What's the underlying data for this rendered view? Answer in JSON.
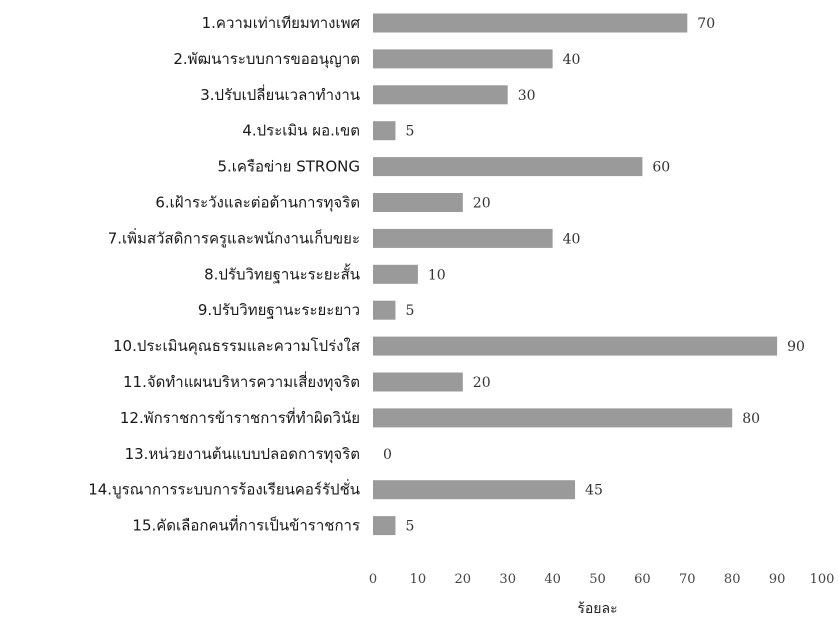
{
  "chart_data": {
    "type": "bar",
    "orientation": "horizontal",
    "categories": [
      "1.ความเท่าเทียมทางเพศ",
      "2.พัฒนาระบบการขออนุญาต",
      "3.ปรับเปลี่ยนเวลาทำงาน",
      "4.ประเมิน ผอ.เขต",
      "5.เครือข่าย STRONG",
      "6.เฝ้าระวังและต่อต้านการทุจริต",
      "7.เพิ่มสวัสดิการครูและพนักงานเก็บขยะ",
      "8.ปรับวิทยฐานะระยะสั้น",
      "9.ปรับวิทยฐานะระยะยาว",
      "10.ประเมินคุณธรรมและความโปร่งใส",
      "11.จัดทำแผนบริหารความเสี่ยงทุจริต",
      "12.พักราชการข้าราชการที่ทำผิดวินัย",
      "13.หน่วยงานต้นแบบปลอดการทุจริต",
      "14.บูรณาการระบบการร้องเรียนคอร์รัปชั่น",
      "15.คัดเลือกคนที่การเป็นข้าราชการ"
    ],
    "values": [
      70,
      40,
      30,
      5,
      60,
      20,
      40,
      10,
      5,
      90,
      20,
      80,
      0,
      45,
      5
    ],
    "value_labels": [
      "70",
      "40",
      "30",
      "5",
      "60",
      "20",
      "40",
      "10",
      "5",
      "90",
      "20",
      "80",
      "0",
      "45",
      "5"
    ],
    "xlim": [
      0,
      100
    ],
    "xticks": [
      "0",
      "10",
      "20",
      "30",
      "40",
      "50",
      "60",
      "70",
      "80",
      "90",
      "100"
    ],
    "xlabel": "ร้อยละ",
    "bar_color": "#9a9a9a",
    "grid": false
  }
}
